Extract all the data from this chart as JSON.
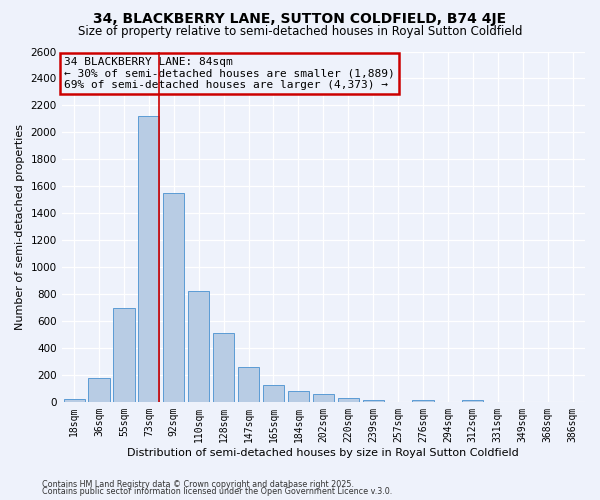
{
  "title": "34, BLACKBERRY LANE, SUTTON COLDFIELD, B74 4JE",
  "subtitle": "Size of property relative to semi-detached houses in Royal Sutton Coldfield",
  "xlabel": "Distribution of semi-detached houses by size in Royal Sutton Coldfield",
  "ylabel": "Number of semi-detached properties",
  "footer1": "Contains HM Land Registry data © Crown copyright and database right 2025.",
  "footer2": "Contains public sector information licensed under the Open Government Licence v.3.0.",
  "categories": [
    "18sqm",
    "36sqm",
    "55sqm",
    "73sqm",
    "92sqm",
    "110sqm",
    "128sqm",
    "147sqm",
    "165sqm",
    "184sqm",
    "202sqm",
    "220sqm",
    "239sqm",
    "257sqm",
    "276sqm",
    "294sqm",
    "312sqm",
    "331sqm",
    "349sqm",
    "368sqm",
    "386sqm"
  ],
  "values": [
    20,
    175,
    700,
    2120,
    1550,
    825,
    510,
    255,
    125,
    80,
    60,
    25,
    15,
    0,
    15,
    0,
    15,
    0,
    0,
    0,
    0
  ],
  "bar_color": "#b8cce4",
  "bar_edge_color": "#5b9bd5",
  "marker_bar_index": 3,
  "marker_color": "#cc0000",
  "annotation_title": "34 BLACKBERRY LANE: 84sqm",
  "annotation_line1": "← 30% of semi-detached houses are smaller (1,889)",
  "annotation_line2": "69% of semi-detached houses are larger (4,373) →",
  "annotation_box_edgecolor": "#cc0000",
  "ylim": [
    0,
    2600
  ],
  "yticks": [
    0,
    200,
    400,
    600,
    800,
    1000,
    1200,
    1400,
    1600,
    1800,
    2000,
    2200,
    2400,
    2600
  ],
  "background_color": "#eef2fb",
  "grid_color": "#ffffff",
  "title_fontsize": 10,
  "subtitle_fontsize": 8.5,
  "axis_label_fontsize": 8,
  "tick_fontsize": 7,
  "annotation_fontsize": 8
}
